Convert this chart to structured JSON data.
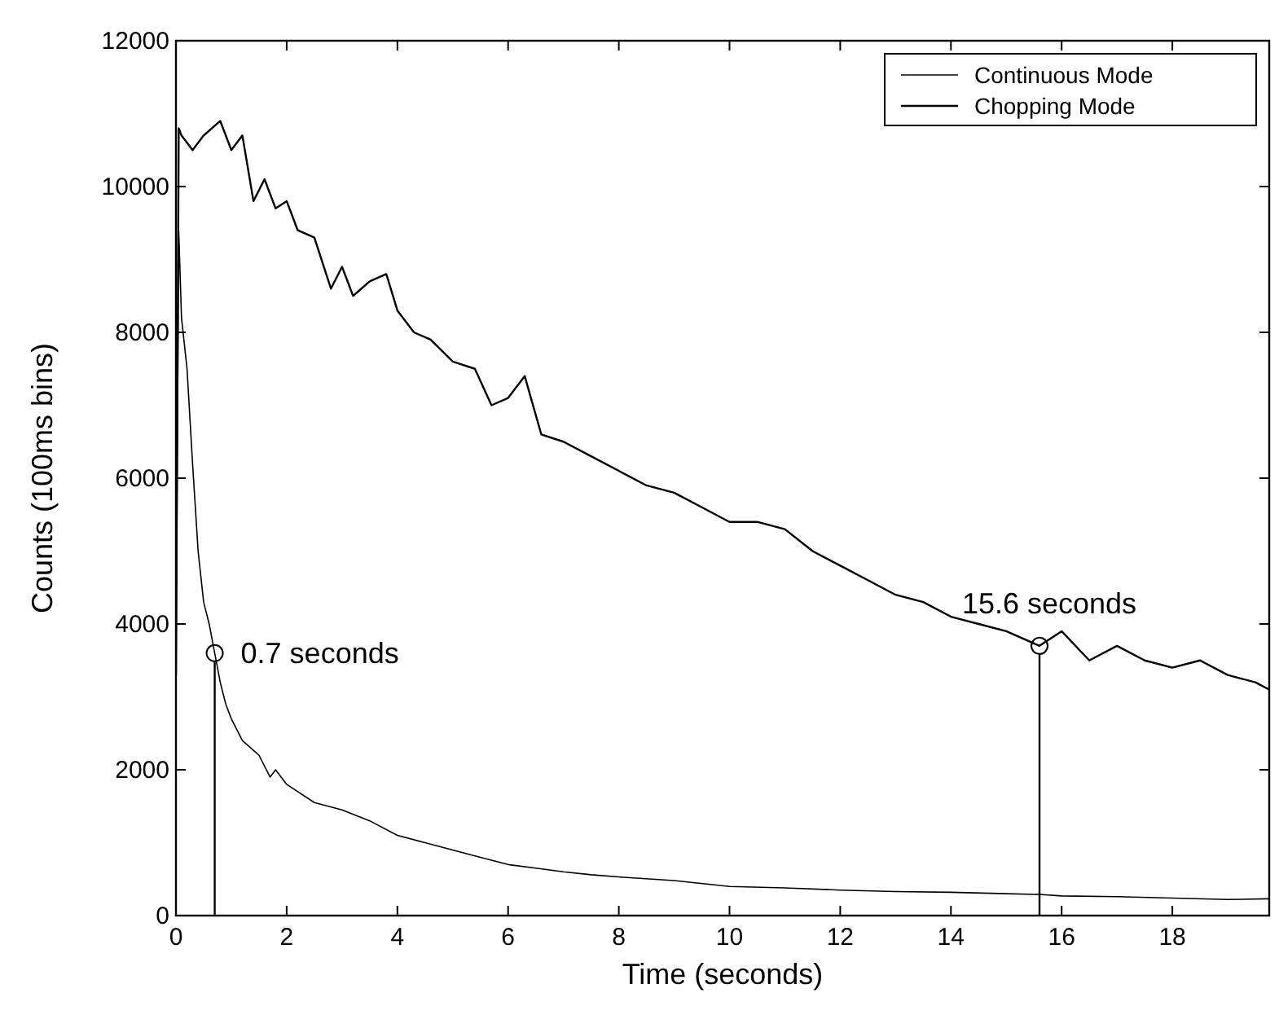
{
  "chart_data": {
    "type": "line",
    "xlabel": "Time (seconds)",
    "ylabel": "Counts (100ms bins)",
    "xlim": [
      0,
      19.75
    ],
    "ylim": [
      0,
      12000
    ],
    "xticks": [
      0,
      2,
      4,
      6,
      8,
      10,
      12,
      14,
      16,
      18
    ],
    "yticks": [
      0,
      2000,
      4000,
      6000,
      8000,
      10000,
      12000
    ],
    "legend": "top right",
    "grid": false,
    "line_style": "solid",
    "series": [
      {
        "name": "Continuous Mode",
        "color": "#000000",
        "x": [
          0,
          0.05,
          0.1,
          0.2,
          0.3,
          0.4,
          0.5,
          0.6,
          0.7,
          0.8,
          0.9,
          1,
          1.2,
          1.5,
          1.7,
          1.8,
          2,
          2.5,
          3,
          3.5,
          4,
          4.5,
          5,
          5.5,
          6,
          6.5,
          7,
          7.5,
          8,
          9,
          10,
          11,
          12,
          13,
          14,
          15,
          15.6,
          16,
          17,
          18,
          19,
          19.75
        ],
        "values": [
          3300,
          9400,
          8200,
          7500,
          6200,
          5000,
          4300,
          4000,
          3600,
          3200,
          2900,
          2700,
          2400,
          2200,
          1900,
          2000,
          1800,
          1550,
          1450,
          1300,
          1100,
          1000,
          900,
          800,
          700,
          650,
          600,
          560,
          530,
          480,
          400,
          380,
          350,
          330,
          320,
          300,
          290,
          270,
          260,
          240,
          220,
          230
        ]
      },
      {
        "name": "Chopping Mode",
        "color": "#000000",
        "x": [
          0,
          0.05,
          0.1,
          0.3,
          0.5,
          0.8,
          1,
          1.2,
          1.4,
          1.6,
          1.8,
          2,
          2.2,
          2.5,
          2.8,
          3,
          3.2,
          3.5,
          3.8,
          4,
          4.3,
          4.6,
          5,
          5.4,
          5.7,
          6,
          6.3,
          6.6,
          7,
          7.5,
          8,
          8.5,
          9,
          9.5,
          10,
          10.5,
          11,
          11.5,
          12,
          12.5,
          13,
          13.5,
          14,
          14.5,
          15,
          15.6,
          16,
          16.5,
          17,
          17.5,
          18,
          18.5,
          19,
          19.5,
          19.75
        ],
        "values": [
          3300,
          10800,
          10700,
          10500,
          10700,
          10900,
          10500,
          10700,
          9800,
          10100,
          9700,
          9800,
          9400,
          9300,
          8600,
          8900,
          8500,
          8700,
          8800,
          8300,
          8000,
          7900,
          7600,
          7500,
          7000,
          7100,
          7400,
          6600,
          6500,
          6300,
          6100,
          5900,
          5800,
          5600,
          5400,
          5400,
          5300,
          5000,
          4800,
          4600,
          4400,
          4300,
          4100,
          4000,
          3900,
          3700,
          3900,
          3500,
          3700,
          3500,
          3400,
          3500,
          3300,
          3200,
          3100
        ]
      }
    ],
    "annotations": [
      {
        "text": "0.7 seconds",
        "x": 0.7,
        "y": 3600
      },
      {
        "text": "15.6 seconds",
        "x": 15.6,
        "y": 3700
      }
    ]
  }
}
